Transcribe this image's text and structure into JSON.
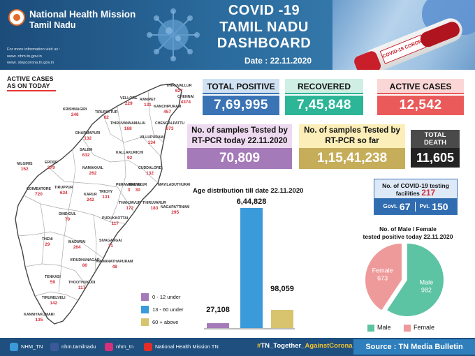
{
  "header": {
    "org_line1": "National Health Mission",
    "org_line2": "Tamil Nadu",
    "info_label": "For more information visit us :",
    "link1": "www. nhm.tn.gov.in",
    "link2": "www. stopcorona.tn.gov.in",
    "title_line1": "COVID -19",
    "title_line2": "TAMIL NADU",
    "title_line3": "DASHBOARD",
    "date_line": "Date : 22.11.2020",
    "tube_label": "COVID-19 CORONAVIRUS"
  },
  "map": {
    "label_line1": "ACTIVE CASES",
    "label_line2": "AS ON TODAY",
    "districts": [
      {
        "name": "THIRUVALLUR",
        "value": "627"
      },
      {
        "name": "CHENNAI",
        "value": "4374"
      },
      {
        "name": "VELLORE",
        "value": "229"
      },
      {
        "name": "RANIPET",
        "value": "131"
      },
      {
        "name": "KANCHIPURAM",
        "value": "457"
      },
      {
        "name": "KRISHNAGIRI",
        "value": "246"
      },
      {
        "name": "TIRUPATTUR",
        "value": "62"
      },
      {
        "name": "THIRUVANNAMALAI",
        "value": "168"
      },
      {
        "name": "CHENGALPATTU",
        "value": "673"
      },
      {
        "name": "DHARMAPURI",
        "value": "132"
      },
      {
        "name": "VILLUPURAM",
        "value": "134"
      },
      {
        "name": "SALEM",
        "value": "632"
      },
      {
        "name": "KALLAKURICHI",
        "value": "92"
      },
      {
        "name": "ERODE",
        "value": "279"
      },
      {
        "name": "NAMAKKAL",
        "value": "262"
      },
      {
        "name": "CUDDALORE",
        "value": "132"
      },
      {
        "name": "NILGIRIS",
        "value": "152"
      },
      {
        "name": "PERAMBALUR",
        "value": "3"
      },
      {
        "name": "ARIYALUR",
        "value": "30"
      },
      {
        "name": "MAYILADUTHURAI",
        "value": ""
      },
      {
        "name": "COIMBATORE",
        "value": "720"
      },
      {
        "name": "TIRUPPUR",
        "value": "634"
      },
      {
        "name": "KARUR",
        "value": "242"
      },
      {
        "name": "TRICHY",
        "value": "131"
      },
      {
        "name": "THANJAVUR",
        "value": "172"
      },
      {
        "name": "THIRUVARUR",
        "value": "183"
      },
      {
        "name": "NAGAPATTINAM",
        "value": "295"
      },
      {
        "name": "DINDIGUL",
        "value": "70"
      },
      {
        "name": "PUDUKKOTTAI",
        "value": "117"
      },
      {
        "name": "THENI",
        "value": "29"
      },
      {
        "name": "MADURAI",
        "value": "264"
      },
      {
        "name": "SIVAGANGAI",
        "value": "71"
      },
      {
        "name": "VIRUDHUNAGAR",
        "value": "80"
      },
      {
        "name": "RAMANATHAPURAM",
        "value": "48"
      },
      {
        "name": "TENKASI",
        "value": "59"
      },
      {
        "name": "THOOTHUKUDI",
        "value": "117"
      },
      {
        "name": "TIRUNELVELI",
        "value": "142"
      },
      {
        "name": "KANNIYAKUMARI",
        "value": "135"
      }
    ]
  },
  "stats": {
    "total_positive_label": "TOTAL POSITIVE",
    "total_positive": "7,69,995",
    "recovered_label": "RECOVERED",
    "recovered": "7,45,848",
    "active_label": "ACTIVE CASES",
    "active": "12,542",
    "rtpcr_today_line1": "No. of samples Tested by",
    "rtpcr_today_line2": "RT-PCR today 22.11.2020",
    "rtpcr_today": "70,809",
    "so_far_line1": "No. of samples Tested by",
    "so_far_line2": "RT-PCR so far",
    "so_far": "1,15,41,238",
    "death_line1": "TOTAL",
    "death_line2": "DEATH",
    "death": "11,605"
  },
  "age_chart": {
    "title": "Age distribution till date 22.11.2020"
  },
  "chart_data": [
    {
      "type": "bar",
      "title": "Age distribution till date 22.11.2020",
      "categories": [
        "0 - 12 under",
        "13 - 60 under",
        "60 + above"
      ],
      "values": [
        27108,
        644828,
        98059
      ],
      "value_labels": [
        "27,108",
        "6,44,828",
        "98,059"
      ],
      "colors": [
        "#a57ab9",
        "#3b9ad9",
        "#d8c36e"
      ],
      "legend_placement": "left"
    },
    {
      "type": "pie",
      "title": "No. of Male / Female tested positive today 22.11.2020",
      "categories": [
        "Male",
        "Female"
      ],
      "values": [
        982,
        673
      ],
      "colors": [
        "#5cc3a3",
        "#ef9a9a"
      ],
      "legend_placement": "bottom"
    }
  ],
  "facilities": {
    "title_line1": "No. of COVID-19 testing",
    "title_line2": "facilities",
    "total": "217",
    "govt_label": "Govt.",
    "govt": "67",
    "pvt_label": "Pvt.",
    "pvt": "150"
  },
  "gender_chart": {
    "title_line1": "No. of Male  / Female",
    "title_line2": "tested positive today 22.11.2020"
  },
  "footer": {
    "twitter": "NHM_TN",
    "facebook": "nhm.tamilnadu",
    "instagram": "nhm_tn",
    "youtube": "National Health Mission TN",
    "hashtag_a": "#",
    "hashtag_b": "TN_Together_",
    "hashtag_c": "AgainstCorona",
    "source": "Source : TN Media Bulletin"
  },
  "colors": {
    "header_bg": "#1c4c7a",
    "total_positive": "#3a74b5",
    "recovered": "#2db597",
    "active": "#ea5a5a",
    "rtpcr_today": "#a57ab9",
    "so_far": "#c6ad5a",
    "death": "#222222",
    "footer_bg": "#1f4f7f",
    "hashtag_yellow": "#f3c431"
  }
}
